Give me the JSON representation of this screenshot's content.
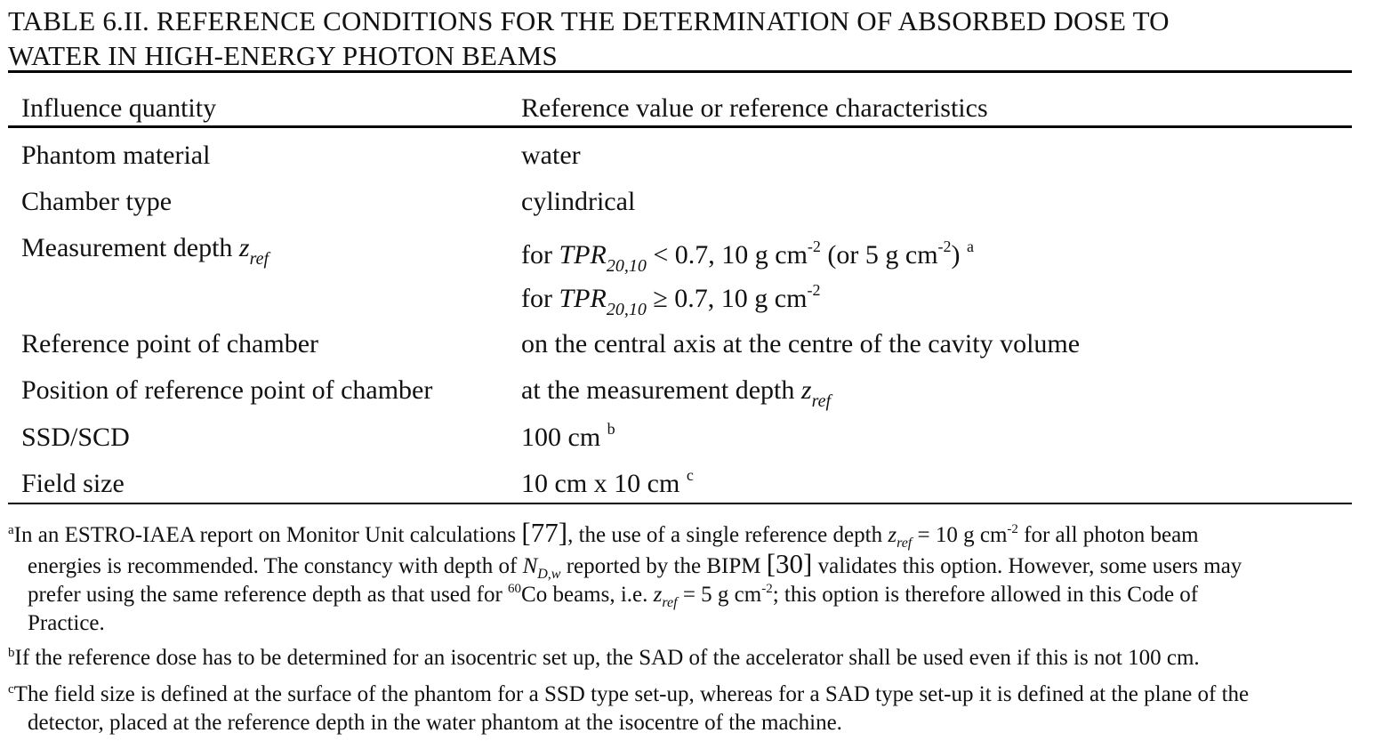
{
  "caption": {
    "line1": "TABLE 6.II. REFERENCE CONDITIONS FOR THE DETERMINATION OF ABSORBED DOSE TO",
    "line2": "WATER IN HIGH-ENERGY PHOTON BEAMS"
  },
  "header": {
    "col1": "Influence quantity",
    "col2": "Reference value or reference characteristics"
  },
  "rows": {
    "phantom": {
      "label": "Phantom material",
      "value": "water"
    },
    "chamber": {
      "label": "Chamber type",
      "value": "cylindrical"
    },
    "depth": {
      "label": "Measurement depth ",
      "label_sym": "z",
      "label_sub": "ref",
      "l1_pre": "for ",
      "l1_sym": "TPR",
      "l1_sub": "20,10",
      "l1_op": " < 0.7, 10 g cm",
      "l1_exp": "-2",
      "l1_mid": " (or 5 g cm",
      "l1_exp2": "-2",
      "l1_post": ")",
      "l1_note": "a",
      "l2_pre": "for ",
      "l2_sym": "TPR",
      "l2_sub": "20,10",
      "l2_op": " ≥ 0.7, 10 g cm",
      "l2_exp": "-2"
    },
    "refpoint": {
      "label": "Reference point of chamber",
      "value": "on the central axis at the centre of the cavity volume"
    },
    "position": {
      "label": "Position of reference point of chamber",
      "value": "at the measurement depth ",
      "sym": "z",
      "sub": "ref"
    },
    "ssd": {
      "label": "SSD/SCD",
      "value": "100 cm",
      "note": "b"
    },
    "field": {
      "label": "Field size",
      "value": "10 cm x 10 cm",
      "note": "c"
    }
  },
  "footnotes": {
    "a": {
      "mark": "a",
      "t1": "In an ESTRO-IAEA report on Monitor Unit calculations ",
      "ref1": "[77]",
      "t2": ", the use of a single reference depth ",
      "sym1": "z",
      "sub1": "ref",
      "t3": " = 10 g cm",
      "exp1": "-2",
      "t4": " for all photon beam",
      "t5": "energies is recommended. The constancy with depth of ",
      "sym2": "N",
      "sub2": "D,w",
      "t6": " reported by the BIPM ",
      "ref2": "[30]",
      "t7": " validates this option. However, some users may",
      "t8": "prefer using the same reference depth as that used for ",
      "iso": "60",
      "t9": "Co beams, i.e. ",
      "sym3": "z",
      "sub3": "ref",
      "t10": " = 5 g cm",
      "exp2": "-2",
      "t11": "; this option is therefore allowed in this Code of",
      "t12": "Practice."
    },
    "b": {
      "mark": "b",
      "text": "If the reference dose has to be determined for an isocentric set up, the SAD of the accelerator shall be used even if this is not 100 cm."
    },
    "c": {
      "mark": "c",
      "t1": "The field size is defined at the surface of the phantom for a SSD type set-up, whereas for a SAD type set-up it is defined at the plane of the",
      "t2": "detector, placed at the reference depth in the water phantom at the isocentre of the machine."
    }
  }
}
